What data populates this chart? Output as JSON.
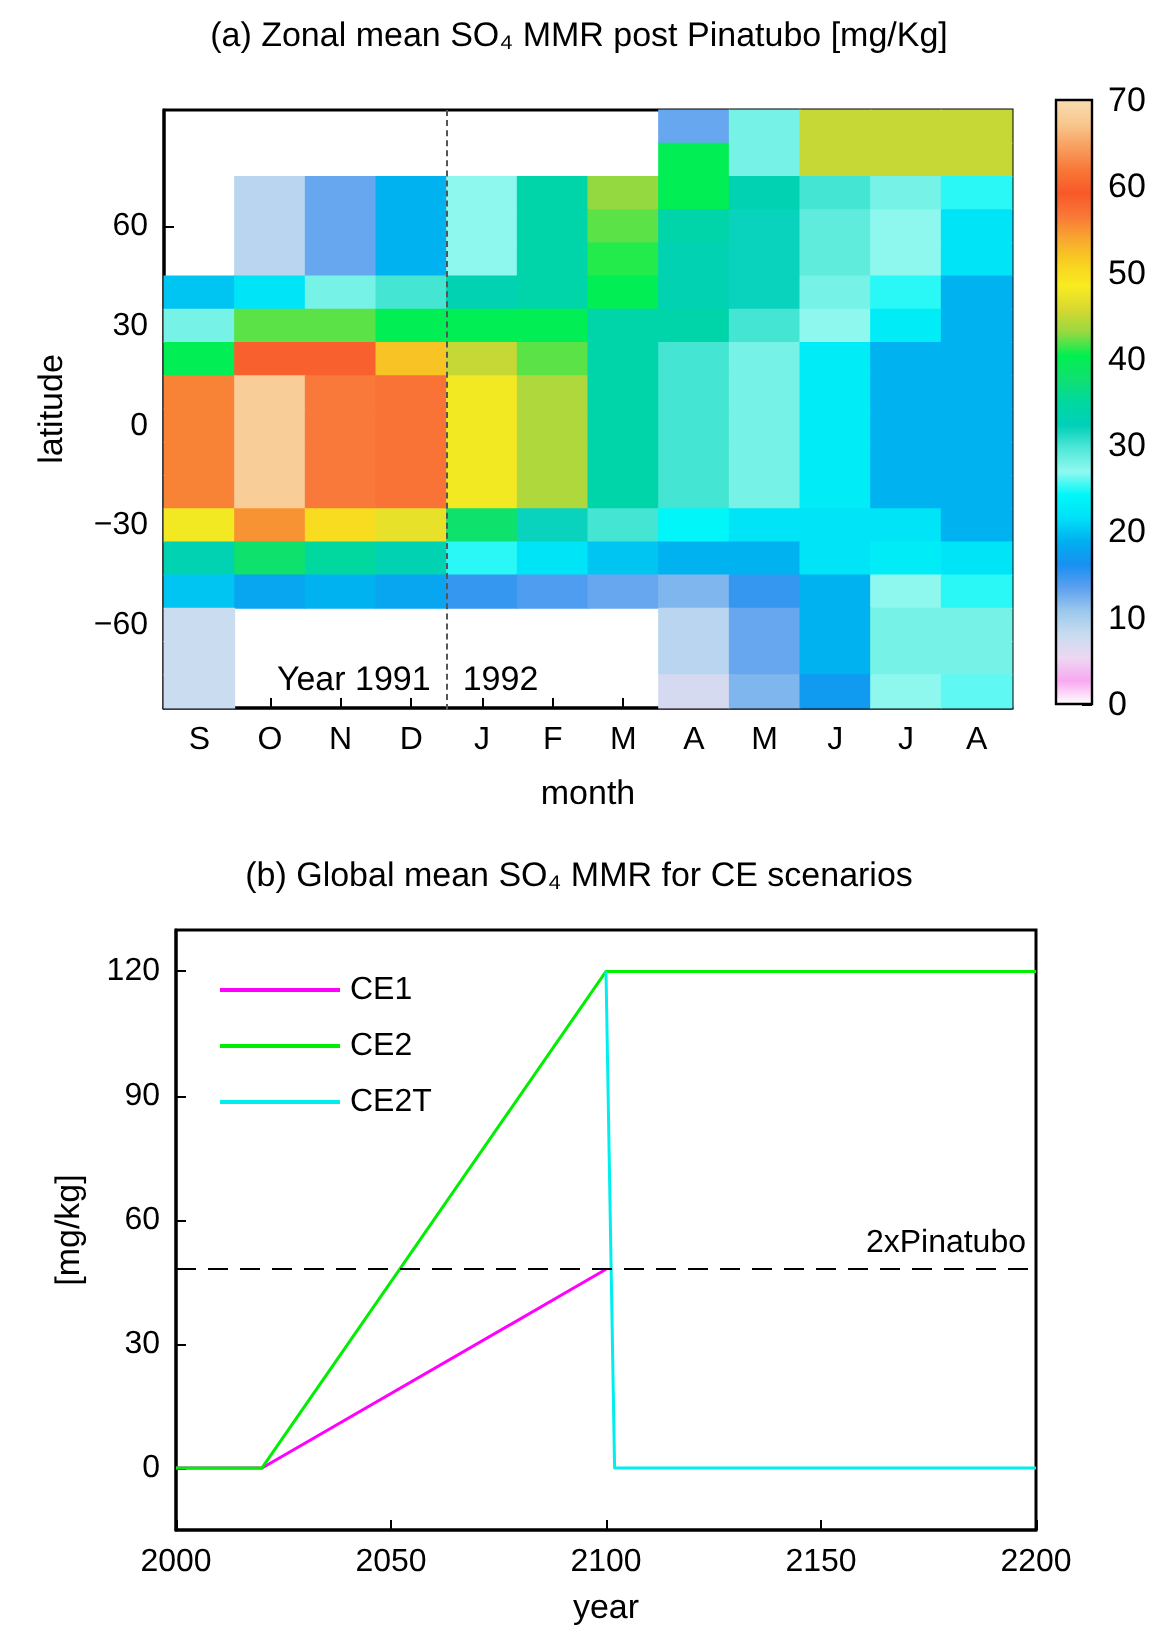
{
  "chart_data": [
    {
      "type": "heatmap",
      "title": "(a) Zonal mean SO₄ MMR post Pinatubo [mg/Kg]",
      "xlabel": "month",
      "ylabel": "latitude",
      "categories": [
        "S",
        "O",
        "N",
        "D",
        "J",
        "F",
        "M",
        "A",
        "M",
        "J",
        "J",
        "A"
      ],
      "y_categories": [
        null,
        null,
        null,
        "60",
        null,
        null,
        "30",
        null,
        null,
        "0",
        null,
        null,
        "−30",
        null,
        null,
        "−60",
        null,
        null
      ],
      "cells": [
        [
          null,
          null,
          null,
          null,
          null,
          null,
          null,
          13,
          28,
          45,
          45,
          45
        ],
        [
          null,
          null,
          null,
          null,
          null,
          null,
          null,
          40,
          28,
          45,
          45,
          45
        ],
        [
          null,
          9,
          13,
          19,
          27,
          34,
          43,
          40,
          33,
          30,
          28,
          25
        ],
        [
          null,
          9,
          13,
          19,
          27,
          34,
          42,
          34,
          32,
          29,
          27,
          22
        ],
        [
          null,
          9,
          13,
          19,
          27,
          34,
          41,
          33,
          32,
          29,
          27,
          22
        ],
        [
          20,
          22,
          28,
          30,
          33,
          34,
          40,
          33,
          32,
          28,
          25,
          19
        ],
        [
          28,
          42,
          42,
          40,
          40,
          40,
          34,
          34,
          30,
          27,
          23,
          19
        ],
        [
          40,
          60,
          60,
          52,
          45,
          42,
          34,
          30,
          28,
          23,
          19,
          19
        ],
        [
          56,
          68,
          62,
          57,
          48,
          44,
          34,
          30,
          28,
          23,
          19,
          19
        ],
        [
          56,
          68,
          62,
          57,
          48,
          44,
          34,
          30,
          28,
          23,
          19,
          19
        ],
        [
          56,
          68,
          62,
          57,
          48,
          44,
          34,
          30,
          28,
          23,
          19,
          19
        ],
        [
          56,
          68,
          62,
          57,
          48,
          44,
          34,
          30,
          28,
          23,
          19,
          19
        ],
        [
          48,
          55,
          50,
          47,
          38,
          32,
          30,
          24,
          22,
          22,
          22,
          19
        ],
        [
          33,
          38,
          35,
          33,
          25,
          22,
          20,
          19,
          19,
          22,
          23,
          22
        ],
        [
          20,
          18,
          19,
          18,
          15,
          14,
          13,
          12,
          15,
          19,
          27,
          25
        ],
        [
          8,
          null,
          null,
          null,
          null,
          null,
          null,
          9,
          13,
          19,
          28,
          28
        ],
        [
          8,
          null,
          null,
          null,
          null,
          null,
          null,
          9,
          13,
          19,
          28,
          28
        ],
        [
          8,
          null,
          null,
          null,
          null,
          null,
          null,
          7,
          12,
          17,
          27,
          26
        ]
      ],
      "clim": [
        0,
        70
      ],
      "cticks": [
        0,
        10,
        20,
        30,
        40,
        50,
        60,
        70
      ],
      "annotations": [
        "Year 1991",
        "1992"
      ]
    },
    {
      "type": "line",
      "title": "(b) Global mean SO₄ MMR for CE scenarios",
      "xlabel": "year",
      "ylabel": "[mg/kg]",
      "series": [
        {
          "name": "CE1",
          "color": "#ff00ff",
          "x": [
            2000,
            2020,
            2100
          ],
          "values": [
            0,
            0,
            48
          ]
        },
        {
          "name": "CE2",
          "color": "#00ee00",
          "x": [
            2000,
            2020,
            2100,
            2200
          ],
          "values": [
            0,
            0,
            120,
            120
          ]
        },
        {
          "name": "CE2T",
          "color": "#00eeee",
          "x": [
            2100,
            2102,
            2200
          ],
          "values": [
            120,
            0,
            0
          ]
        }
      ],
      "xlim": [
        2000,
        2200
      ],
      "xticks": [
        2000,
        2050,
        2100,
        2150,
        2200
      ],
      "ylim": [
        -15,
        130
      ],
      "yticks": [
        0,
        30,
        60,
        90,
        120
      ],
      "ref_lines": [
        {
          "axis": "y",
          "value": 48,
          "label": "2xPinatubo",
          "line_style": "dashed",
          "color": "#000000"
        }
      ],
      "legend": "top left",
      "grid": false
    }
  ]
}
